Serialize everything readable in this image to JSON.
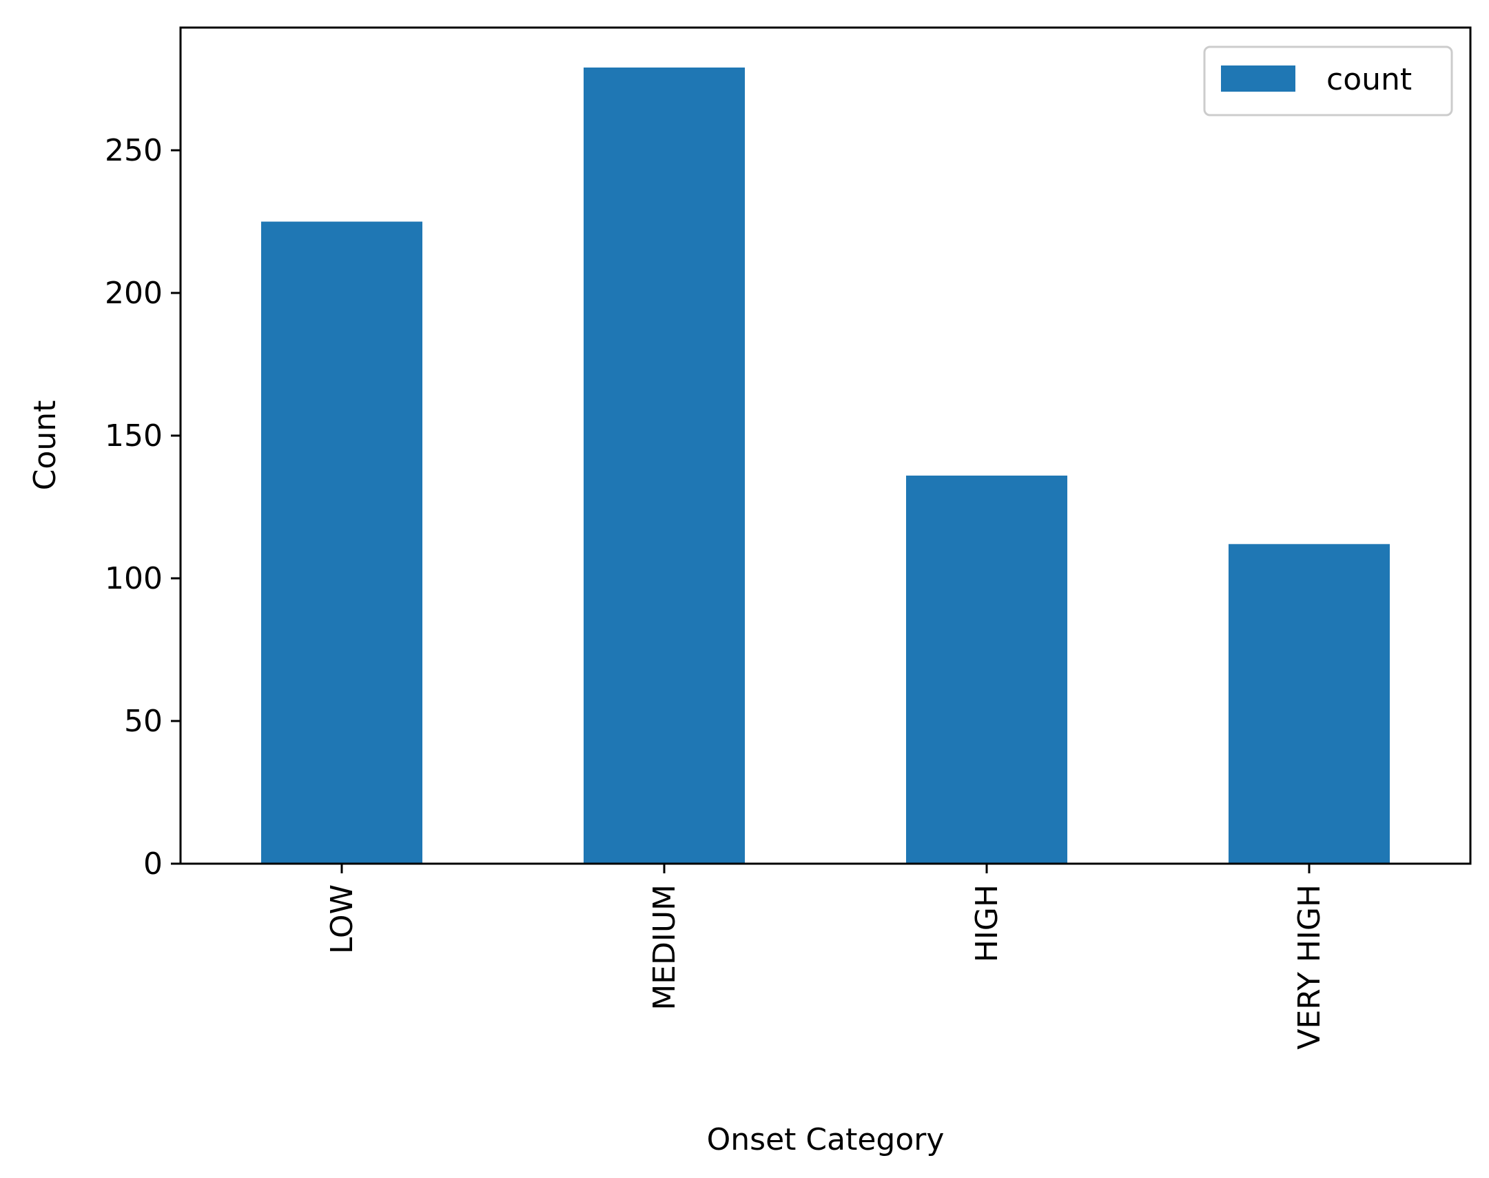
{
  "chart_data": {
    "type": "bar",
    "categories": [
      "LOW",
      "MEDIUM",
      "HIGH",
      "VERY HIGH"
    ],
    "series": [
      {
        "name": "count",
        "values": [
          225,
          279,
          136,
          112
        ],
        "color": "#1f77b4"
      }
    ],
    "xlabel": "Onset Category",
    "ylabel": "Count",
    "ylim": [
      0,
      293
    ],
    "yticks": [
      0,
      50,
      100,
      150,
      200,
      250
    ],
    "ytick_labels": [
      "0",
      "50",
      "100",
      "150",
      "200",
      "250"
    ],
    "xtick_rotation": 90,
    "grid": false,
    "legend": {
      "position": "top-right",
      "entries": [
        "count"
      ]
    }
  }
}
